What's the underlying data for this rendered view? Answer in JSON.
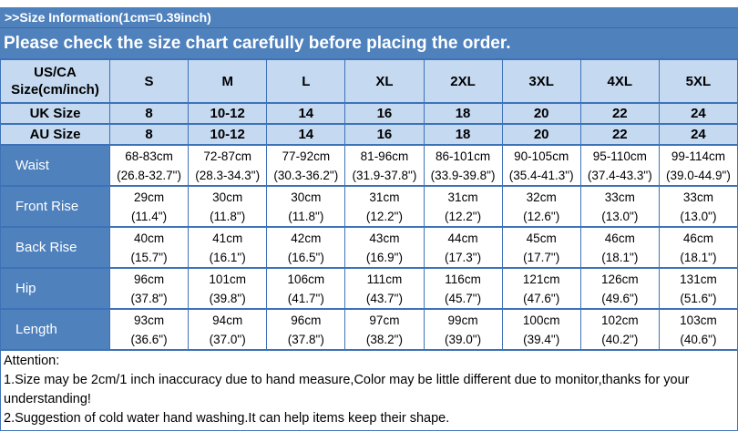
{
  "banners": {
    "info": ">>Size Information(1cm=0.39inch)",
    "notice": "Please check the size chart carefully before placing the order."
  },
  "table": {
    "header": [
      "US/CA\nSize(cm/inch)",
      "S",
      "M",
      "L",
      "XL",
      "2XL",
      "3XL",
      "4XL",
      "5XL"
    ],
    "size_rows": [
      {
        "label": "UK Size",
        "values": [
          "8",
          "10-12",
          "14",
          "16",
          "18",
          "20",
          "22",
          "24"
        ]
      },
      {
        "label": "AU Size",
        "values": [
          "8",
          "10-12",
          "14",
          "16",
          "18",
          "20",
          "22",
          "24"
        ]
      }
    ],
    "measure_rows": [
      {
        "label": "Waist",
        "cells": [
          {
            "cm": "68-83cm",
            "in": "(26.8-32.7\")"
          },
          {
            "cm": "72-87cm",
            "in": "(28.3-34.3\")"
          },
          {
            "cm": "77-92cm",
            "in": "(30.3-36.2\")"
          },
          {
            "cm": "81-96cm",
            "in": "(31.9-37.8\")"
          },
          {
            "cm": "86-101cm",
            "in": "(33.9-39.8\")"
          },
          {
            "cm": "90-105cm",
            "in": "(35.4-41.3\")"
          },
          {
            "cm": "95-110cm",
            "in": "(37.4-43.3\")"
          },
          {
            "cm": "99-114cm",
            "in": "(39.0-44.9\")"
          }
        ]
      },
      {
        "label": "Front Rise",
        "cells": [
          {
            "cm": "29cm",
            "in": "(11.4\")"
          },
          {
            "cm": "30cm",
            "in": "(11.8\")"
          },
          {
            "cm": "30cm",
            "in": "(11.8\")"
          },
          {
            "cm": "31cm",
            "in": "(12.2\")"
          },
          {
            "cm": "31cm",
            "in": "(12.2\")"
          },
          {
            "cm": "32cm",
            "in": "(12.6\")"
          },
          {
            "cm": "33cm",
            "in": "(13.0\")"
          },
          {
            "cm": "33cm",
            "in": "(13.0\")"
          }
        ]
      },
      {
        "label": "Back Rise",
        "cells": [
          {
            "cm": "40cm",
            "in": "(15.7\")"
          },
          {
            "cm": "41cm",
            "in": "(16.1\")"
          },
          {
            "cm": "42cm",
            "in": "(16.5\")"
          },
          {
            "cm": "43cm",
            "in": "(16.9\")"
          },
          {
            "cm": "44cm",
            "in": "(17.3\")"
          },
          {
            "cm": "45cm",
            "in": "(17.7\")"
          },
          {
            "cm": "46cm",
            "in": "(18.1\")"
          },
          {
            "cm": "46cm",
            "in": "(18.1\")"
          }
        ]
      },
      {
        "label": "Hip",
        "cells": [
          {
            "cm": "96cm",
            "in": "(37.8\")"
          },
          {
            "cm": "101cm",
            "in": "(39.8\")"
          },
          {
            "cm": "106cm",
            "in": "(41.7\")"
          },
          {
            "cm": "111cm",
            "in": "(43.7\")"
          },
          {
            "cm": "116cm",
            "in": "(45.7\")"
          },
          {
            "cm": "121cm",
            "in": "(47.6\")"
          },
          {
            "cm": "126cm",
            "in": "(49.6\")"
          },
          {
            "cm": "131cm",
            "in": "(51.6\")"
          }
        ]
      },
      {
        "label": "Length",
        "cells": [
          {
            "cm": "93cm",
            "in": "(36.6\")"
          },
          {
            "cm": "94cm",
            "in": "(37.0\")"
          },
          {
            "cm": "96cm",
            "in": "(37.8\")"
          },
          {
            "cm": "97cm",
            "in": "(38.2\")"
          },
          {
            "cm": "99cm",
            "in": "(39.0\")"
          },
          {
            "cm": "100cm",
            "in": "(39.4\")"
          },
          {
            "cm": "102cm",
            "in": "(40.2\")"
          },
          {
            "cm": "103cm",
            "in": "(40.6\")"
          }
        ]
      }
    ]
  },
  "attention": {
    "title": "Attention:",
    "line1": "1.Size may be 2cm/1 inch inaccuracy due to hand measure,Color may be little different due to monitor,thanks for your understanding!",
    "line2": "2.Suggestion of cold water hand washing.It can help items keep their shape."
  },
  "colors": {
    "banner_blue": "#4f81bd",
    "header_light_blue": "#c5d9f1",
    "border_blue": "#3e72b8",
    "banner_text": "#ffffff"
  }
}
